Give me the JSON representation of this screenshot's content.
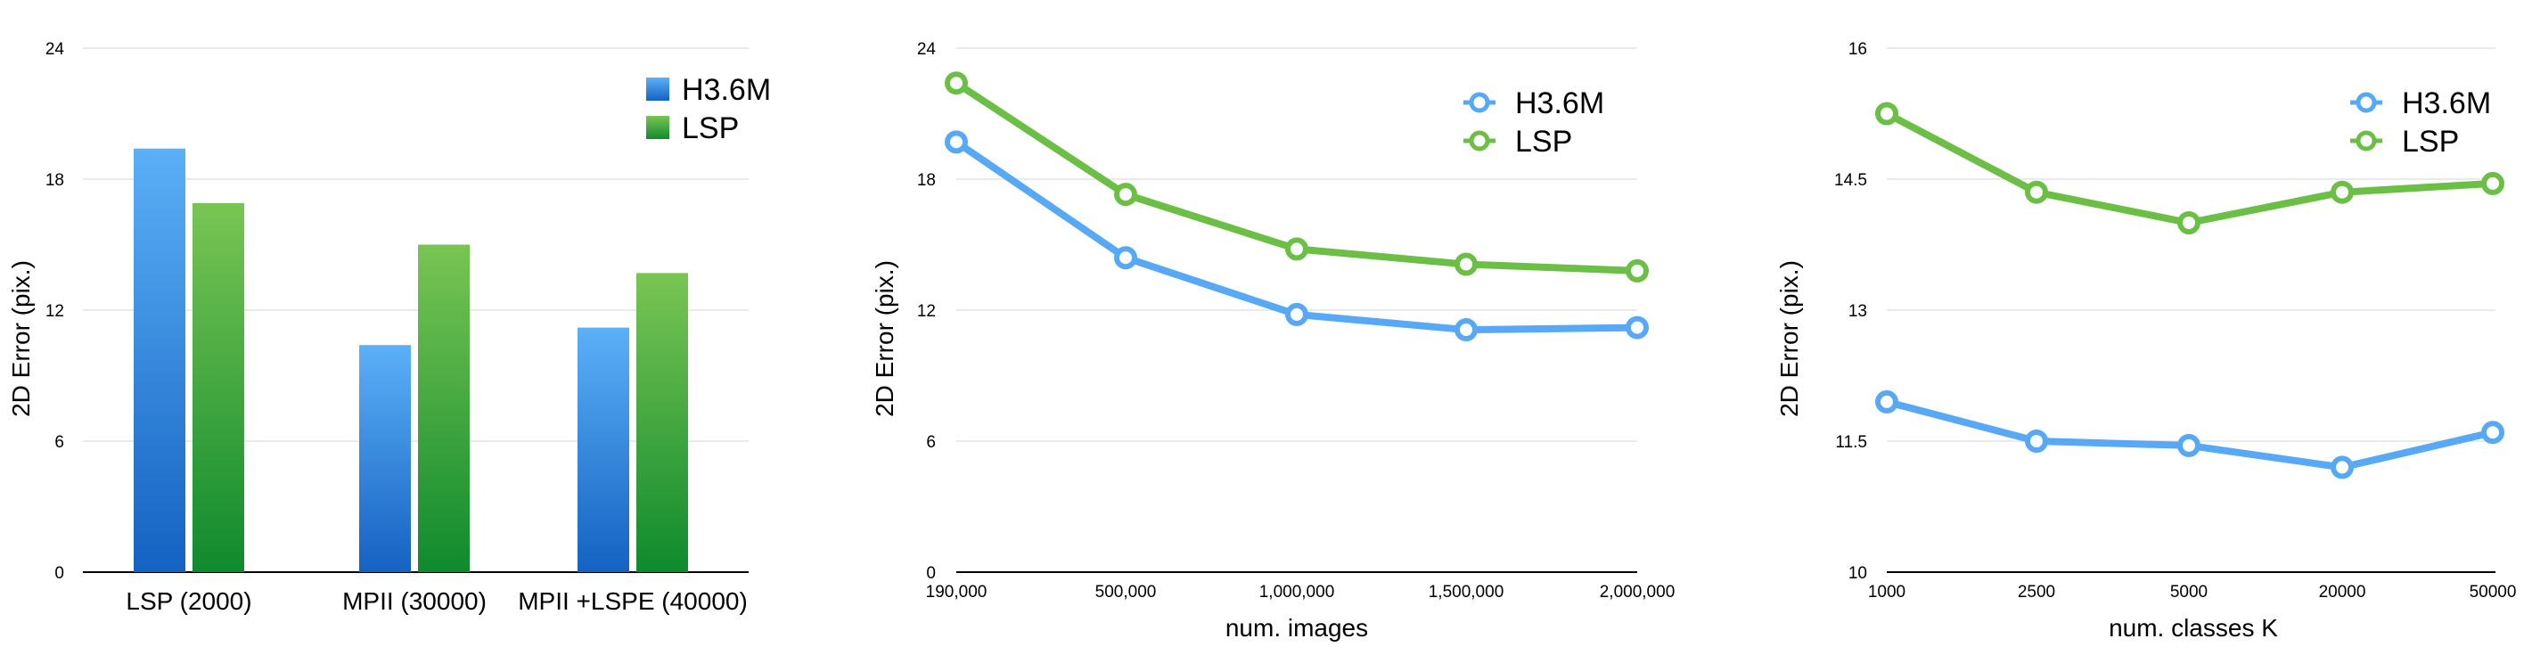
{
  "colors": {
    "blue": "#57A9F5",
    "green": "#6CBF45"
  },
  "chart_data": [
    {
      "type": "bar",
      "ylabel": "2D Error (pix.)",
      "xlabel": "",
      "ylim": [
        0,
        24
      ],
      "yticks": [
        "0",
        "6",
        "12",
        "18",
        "24"
      ],
      "categories": [
        "LSP (2000)",
        "MPII (30000)",
        "MPII +LSPE (40000)"
      ],
      "series": [
        {
          "name": "H3.6M",
          "values": [
            19.4,
            10.4,
            11.2
          ]
        },
        {
          "name": "LSP",
          "values": [
            16.9,
            15.0,
            13.7
          ]
        }
      ],
      "legend": "top-right",
      "grid": true
    },
    {
      "type": "line",
      "ylabel": "2D Error (pix.)",
      "xlabel": "num. images",
      "ylim": [
        0,
        24
      ],
      "yticks": [
        "0",
        "6",
        "12",
        "18",
        "24"
      ],
      "x": [
        "190,000",
        "500,000",
        "1,000,000",
        "1,500,000",
        "2,000,000"
      ],
      "series": [
        {
          "name": "H3.6M",
          "values": [
            19.7,
            14.4,
            11.8,
            11.1,
            11.2
          ]
        },
        {
          "name": "LSP",
          "values": [
            22.4,
            17.3,
            14.8,
            14.1,
            13.8
          ]
        }
      ],
      "legend": "top-right",
      "grid": true
    },
    {
      "type": "line",
      "ylabel": "2D Error (pix.)",
      "xlabel": "num. classes K",
      "ylim": [
        10,
        16
      ],
      "yticks": [
        "10",
        "11.5",
        "13",
        "14.5",
        "16"
      ],
      "x": [
        "1000",
        "2500",
        "5000",
        "20000",
        "50000"
      ],
      "series": [
        {
          "name": "H3.6M",
          "values": [
            11.95,
            11.5,
            11.45,
            11.2,
            11.6
          ]
        },
        {
          "name": "LSP",
          "values": [
            15.25,
            14.35,
            14.0,
            14.35,
            14.45
          ]
        }
      ],
      "legend": "top-right",
      "grid": true
    }
  ]
}
